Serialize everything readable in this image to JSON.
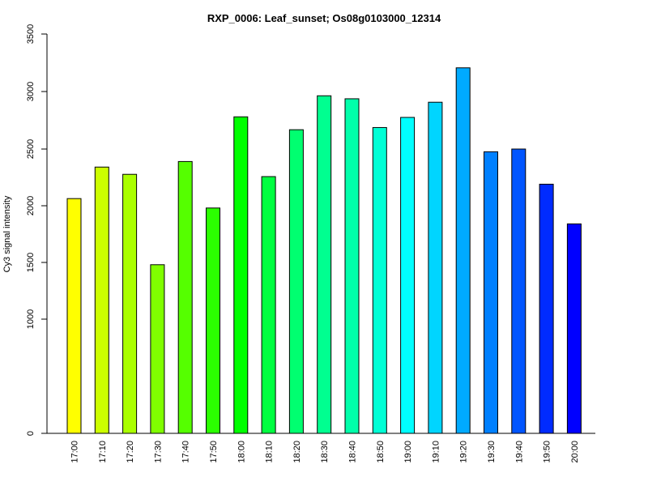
{
  "chart_data": {
    "type": "bar",
    "title": "RXP_0006: Leaf_sunset; Os08g0103000_12314",
    "xlabel": "",
    "ylabel": "Cy3 signal intensity",
    "ylim": [
      0,
      3500
    ],
    "yticks": [
      0,
      1000,
      1500,
      2000,
      2500,
      3000,
      3500
    ],
    "grid": false,
    "categories": [
      "17:00",
      "17:10",
      "17:20",
      "17:30",
      "17:40",
      "17:50",
      "18:00",
      "18:10",
      "18:20",
      "18:30",
      "18:40",
      "18:50",
      "19:00",
      "19:10",
      "19:20",
      "19:30",
      "19:40",
      "19:50",
      "20:00"
    ],
    "values": [
      2063,
      2341,
      2277,
      1480,
      2390,
      1980,
      2780,
      2257,
      2668,
      2963,
      2937,
      2687,
      2775,
      2907,
      3206,
      2476,
      2500,
      2190,
      1840
    ],
    "colors": [
      "#FFFF00",
      "#CCFF00",
      "#AAFF00",
      "#80FF00",
      "#55FF00",
      "#2BFF00",
      "#00FF00",
      "#00FF40",
      "#00FF70",
      "#00FF90",
      "#00FFAA",
      "#00FFD5",
      "#00FFFF",
      "#00D5FF",
      "#00AAFF",
      "#0080FF",
      "#0055FF",
      "#002BFF",
      "#0000FF"
    ]
  }
}
